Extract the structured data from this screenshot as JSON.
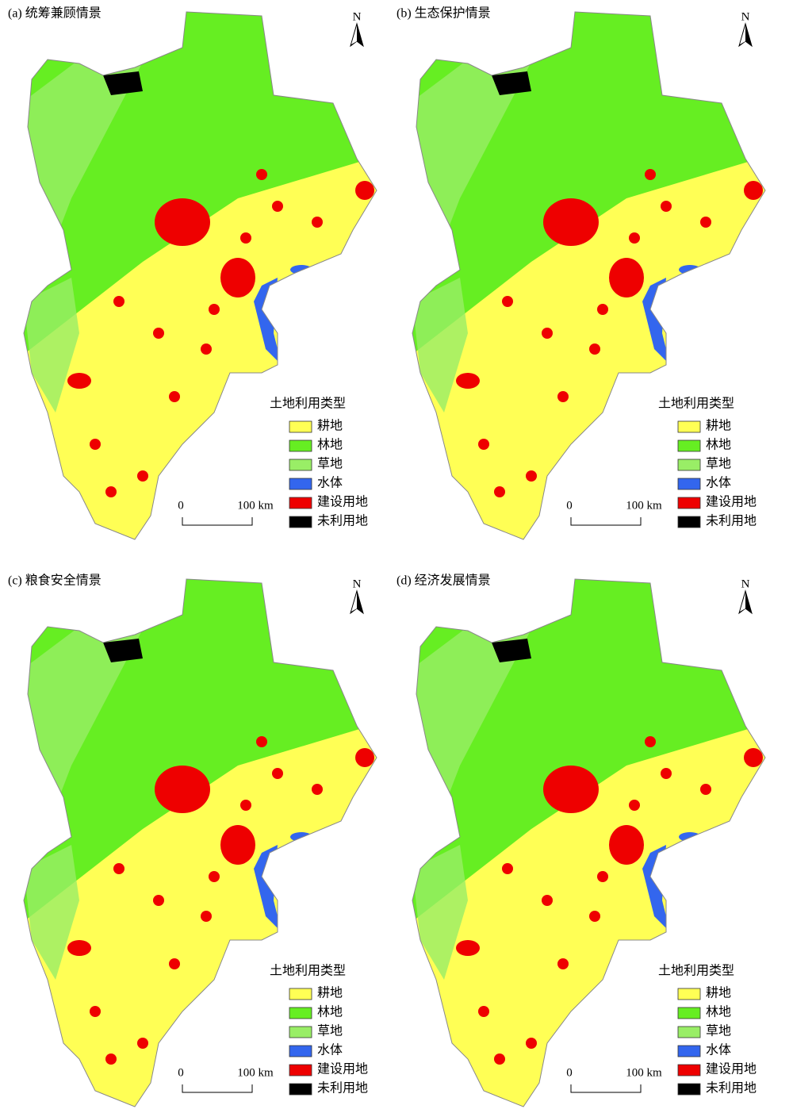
{
  "panels": [
    {
      "title": "(a) 统筹兼顾情景",
      "north": "N",
      "scale_start": "0",
      "scale_end": "100 km",
      "legend": {
        "title": "土地利用类型",
        "items": [
          {
            "label": "耕地",
            "color": "#ffff55"
          },
          {
            "label": "林地",
            "color": "#66ee22"
          },
          {
            "label": "草地",
            "color": "#99ee66"
          },
          {
            "label": "水体",
            "color": "#3366ee"
          },
          {
            "label": "建设用地",
            "color": "#ee0000"
          },
          {
            "label": "未利用地",
            "color": "#000000"
          }
        ]
      }
    },
    {
      "title": "(b) 生态保护情景",
      "north": "N",
      "scale_start": "0",
      "scale_end": "100 km",
      "legend": {
        "title": "土地利用类型",
        "items": [
          {
            "label": "耕地",
            "color": "#ffff55"
          },
          {
            "label": "林地",
            "color": "#66ee22"
          },
          {
            "label": "草地",
            "color": "#99ee66"
          },
          {
            "label": "水体",
            "color": "#3366ee"
          },
          {
            "label": "建设用地",
            "color": "#ee0000"
          },
          {
            "label": "未利用地",
            "color": "#000000"
          }
        ]
      }
    },
    {
      "title": "(c) 粮食安全情景",
      "north": "N",
      "scale_start": "0",
      "scale_end": "100 km",
      "legend": {
        "title": "土地利用类型",
        "items": [
          {
            "label": "耕地",
            "color": "#ffff55"
          },
          {
            "label": "林地",
            "color": "#66ee22"
          },
          {
            "label": "草地",
            "color": "#99ee66"
          },
          {
            "label": "水体",
            "color": "#3366ee"
          },
          {
            "label": "建设用地",
            "color": "#ee0000"
          },
          {
            "label": "未利用地",
            "color": "#000000"
          }
        ]
      }
    },
    {
      "title": "(d) 经济发展情景",
      "north": "N",
      "scale_start": "0",
      "scale_end": "100 km",
      "legend": {
        "title": "土地利用类型",
        "items": [
          {
            "label": "耕地",
            "color": "#ffff55"
          },
          {
            "label": "林地",
            "color": "#66ee22"
          },
          {
            "label": "草地",
            "color": "#99ee66"
          },
          {
            "label": "水体",
            "color": "#3366ee"
          },
          {
            "label": "建设用地",
            "color": "#ee0000"
          },
          {
            "label": "未利用地",
            "color": "#000000"
          }
        ]
      }
    }
  ]
}
